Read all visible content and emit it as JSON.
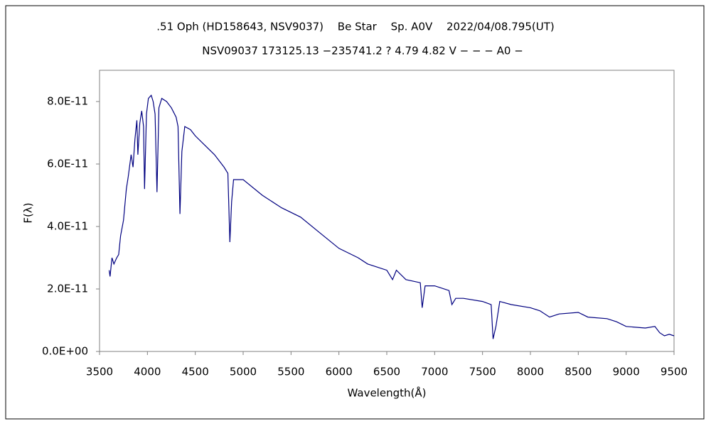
{
  "chart_data": {
    "type": "line",
    "title": ".51 Oph (HD158643, NSV9037)　 Be Star　 Sp. A0V　 2022/04/08.795(UT)",
    "subtitle": "NSV09037 173125.13 −235741.2 ? 4.79 4.82 V − − − A0 −",
    "xlabel": "Wavelength(Å)",
    "ylabel": "F(λ)",
    "color": "#000080",
    "x": [
      3600,
      3610,
      3630,
      3650,
      3680,
      3700,
      3720,
      3750,
      3780,
      3800,
      3830,
      3850,
      3870,
      3890,
      3900,
      3920,
      3940,
      3960,
      3970,
      3990,
      4010,
      4040,
      4060,
      4080,
      4100,
      4120,
      4150,
      4200,
      4250,
      4300,
      4320,
      4340,
      4360,
      4390,
      4450,
      4500,
      4600,
      4700,
      4800,
      4840,
      4861,
      4880,
      4900,
      5000,
      5200,
      5400,
      5600,
      5800,
      6000,
      6200,
      6300,
      6400,
      6500,
      6560,
      6600,
      6700,
      6850,
      6870,
      6900,
      7000,
      7150,
      7180,
      7220,
      7300,
      7500,
      7590,
      7610,
      7640,
      7680,
      7800,
      8000,
      8100,
      8200,
      8300,
      8500,
      8600,
      8800,
      8900,
      9000,
      9200,
      9300,
      9350,
      9400,
      9450,
      9500
    ],
    "values": [
      2.6e-11,
      2.4e-11,
      3e-11,
      2.8e-11,
      3e-11,
      3.1e-11,
      3.7e-11,
      4.2e-11,
      5.2e-11,
      5.6e-11,
      6.3e-11,
      5.9e-11,
      6.8e-11,
      7.4e-11,
      6.3e-11,
      7.3e-11,
      7.7e-11,
      7.2e-11,
      5.2e-11,
      7.6e-11,
      8.1e-11,
      8.2e-11,
      8e-11,
      7.6e-11,
      5.1e-11,
      7.8e-11,
      8.1e-11,
      8e-11,
      7.8e-11,
      7.5e-11,
      7.2e-11,
      4.4e-11,
      6.4e-11,
      7.2e-11,
      7.1e-11,
      6.9e-11,
      6.6e-11,
      6.3e-11,
      5.9e-11,
      5.7e-11,
      3.5e-11,
      4.8e-11,
      5.5e-11,
      5.5e-11,
      5e-11,
      4.6e-11,
      4.3e-11,
      3.8e-11,
      3.3e-11,
      3e-11,
      2.8e-11,
      2.7e-11,
      2.6e-11,
      2.3e-11,
      2.6e-11,
      2.3e-11,
      2.2e-11,
      1.4e-11,
      2.1e-11,
      2.1e-11,
      1.95e-11,
      1.5e-11,
      1.7e-11,
      1.7e-11,
      1.6e-11,
      1.5e-11,
      4e-12,
      8e-12,
      1.6e-11,
      1.5e-11,
      1.4e-11,
      1.3e-11,
      1.1e-11,
      1.2e-11,
      1.25e-11,
      1.1e-11,
      1.05e-11,
      9.5e-12,
      8e-12,
      7.5e-12,
      8e-12,
      6e-12,
      5e-12,
      5.5e-12,
      5e-12
    ],
    "xlim": [
      3500,
      9500
    ],
    "xticks": [
      3500,
      4000,
      4500,
      5000,
      5500,
      6000,
      6500,
      7000,
      7500,
      8000,
      8500,
      9000,
      9500
    ],
    "ylim": [
      0,
      9e-11
    ],
    "yticks": [
      {
        "value": 0,
        "label": "0.0E+00"
      },
      {
        "value": 2e-11,
        "label": "2.0E-11"
      },
      {
        "value": 4e-11,
        "label": "4.0E-11"
      },
      {
        "value": 6e-11,
        "label": "6.0E-11"
      },
      {
        "value": 8e-11,
        "label": "8.0E-11"
      }
    ]
  }
}
